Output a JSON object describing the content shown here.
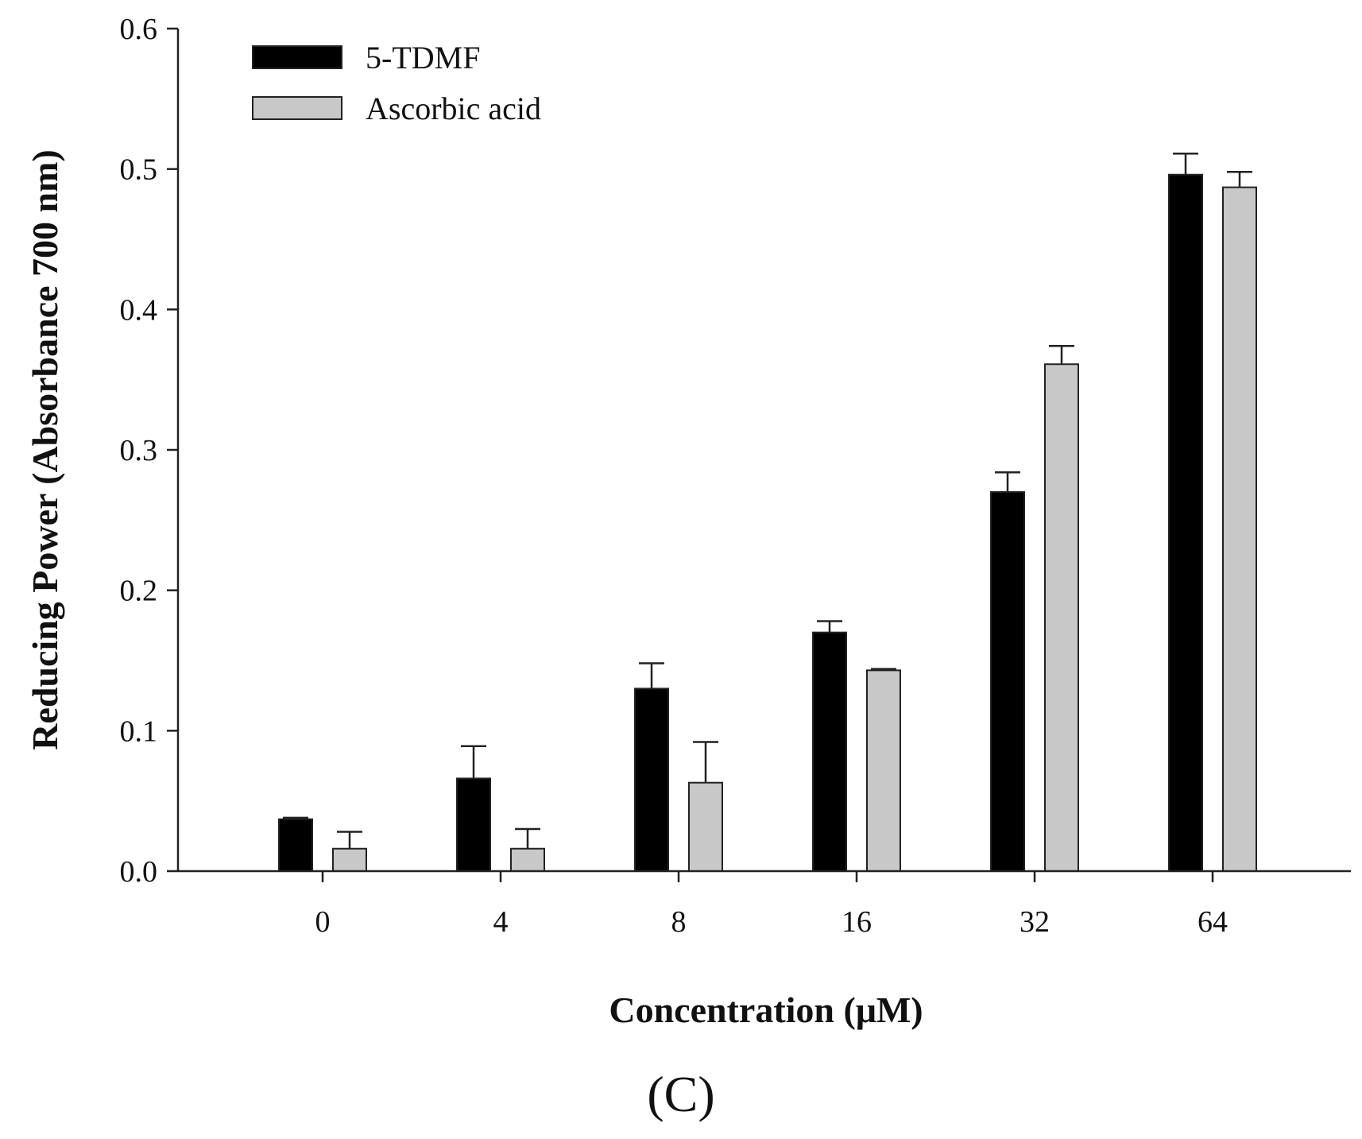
{
  "chart_data": {
    "type": "bar",
    "title": "",
    "xlabel": "Concentration (μM)",
    "ylabel": "Reducing Power (Absorbance 700 nm)",
    "panel_label": "(C)",
    "ylim": [
      0.0,
      0.6
    ],
    "yticks": [
      "0.0",
      "0.1",
      "0.2",
      "0.3",
      "0.4",
      "0.5",
      "0.6"
    ],
    "categories": [
      "0",
      "4",
      "8",
      "16",
      "32",
      "64"
    ],
    "series": [
      {
        "name": "5-TDMF",
        "color": "#000000",
        "values": [
          0.037,
          0.066,
          0.13,
          0.17,
          0.27,
          0.496
        ],
        "errors": [
          0.001,
          0.023,
          0.018,
          0.008,
          0.014,
          0.015
        ]
      },
      {
        "name": "Ascorbic acid",
        "color": "#c8c8c8",
        "values": [
          0.016,
          0.016,
          0.063,
          0.143,
          0.361,
          0.487
        ],
        "errors": [
          0.012,
          0.014,
          0.029,
          0.001,
          0.013,
          0.011
        ]
      }
    ],
    "legend_position": "top-left",
    "grid": false
  }
}
